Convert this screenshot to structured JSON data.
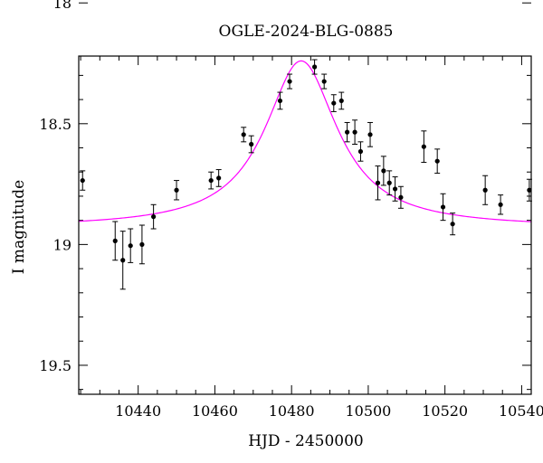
{
  "chart_data": {
    "type": "scatter",
    "title": "OGLE-2024-BLG-0885",
    "xlabel": "HJD - 2450000",
    "ylabel": "I magnitude",
    "xlim": [
      10424.5,
      10542.5
    ],
    "ylim": [
      19.62,
      18.22
    ],
    "y_inverted": true,
    "x_major_ticks": [
      10440,
      10460,
      10480,
      10500,
      10520,
      10540
    ],
    "x_tick_labels": [
      "10440",
      "10460",
      "10480",
      "10500",
      "10520",
      "10540"
    ],
    "y_major_ticks": [
      18,
      18.5,
      19,
      19.5
    ],
    "y_tick_labels": [
      "18",
      "18.5",
      "19",
      "19.5"
    ],
    "grid": false,
    "model_color": "#ff00ff",
    "point_color": "#000000",
    "model": {
      "t0": 10482.5,
      "base_mag": 18.93,
      "peak_mag": 18.24,
      "width_days": 11.5
    },
    "series": [
      {
        "points": [
          {
            "x": 10425.5,
            "y": 18.735,
            "err": 0.04
          },
          {
            "x": 10434.0,
            "y": 18.985,
            "err": 0.08
          },
          {
            "x": 10436.0,
            "y": 19.065,
            "err": 0.12
          },
          {
            "x": 10438.0,
            "y": 19.005,
            "err": 0.07
          },
          {
            "x": 10441.0,
            "y": 19.0,
            "err": 0.08
          },
          {
            "x": 10444.0,
            "y": 18.885,
            "err": 0.05
          },
          {
            "x": 10450.0,
            "y": 18.775,
            "err": 0.04
          },
          {
            "x": 10459.0,
            "y": 18.735,
            "err": 0.035
          },
          {
            "x": 10461.0,
            "y": 18.725,
            "err": 0.035
          },
          {
            "x": 10467.5,
            "y": 18.545,
            "err": 0.03
          },
          {
            "x": 10469.5,
            "y": 18.585,
            "err": 0.035
          },
          {
            "x": 10477.0,
            "y": 18.405,
            "err": 0.035
          },
          {
            "x": 10479.5,
            "y": 18.325,
            "err": 0.03
          },
          {
            "x": 10486.0,
            "y": 18.265,
            "err": 0.03
          },
          {
            "x": 10488.5,
            "y": 18.325,
            "err": 0.03
          },
          {
            "x": 10491.0,
            "y": 18.415,
            "err": 0.035
          },
          {
            "x": 10493.0,
            "y": 18.405,
            "err": 0.035
          },
          {
            "x": 10494.5,
            "y": 18.535,
            "err": 0.04
          },
          {
            "x": 10496.5,
            "y": 18.535,
            "err": 0.05
          },
          {
            "x": 10498.0,
            "y": 18.615,
            "err": 0.04
          },
          {
            "x": 10500.5,
            "y": 18.545,
            "err": 0.05
          },
          {
            "x": 10502.5,
            "y": 18.745,
            "err": 0.07
          },
          {
            "x": 10504.0,
            "y": 18.695,
            "err": 0.06
          },
          {
            "x": 10505.5,
            "y": 18.745,
            "err": 0.05
          },
          {
            "x": 10507.0,
            "y": 18.77,
            "err": 0.05
          },
          {
            "x": 10508.5,
            "y": 18.805,
            "err": 0.045
          },
          {
            "x": 10514.5,
            "y": 18.595,
            "err": 0.065
          },
          {
            "x": 10518.0,
            "y": 18.655,
            "err": 0.05
          },
          {
            "x": 10519.5,
            "y": 18.845,
            "err": 0.055
          },
          {
            "x": 10522.0,
            "y": 18.915,
            "err": 0.045
          },
          {
            "x": 10530.5,
            "y": 18.775,
            "err": 0.06
          },
          {
            "x": 10534.5,
            "y": 18.835,
            "err": 0.04
          },
          {
            "x": 10542.0,
            "y": 18.775,
            "err": 0.045
          }
        ]
      }
    ]
  }
}
